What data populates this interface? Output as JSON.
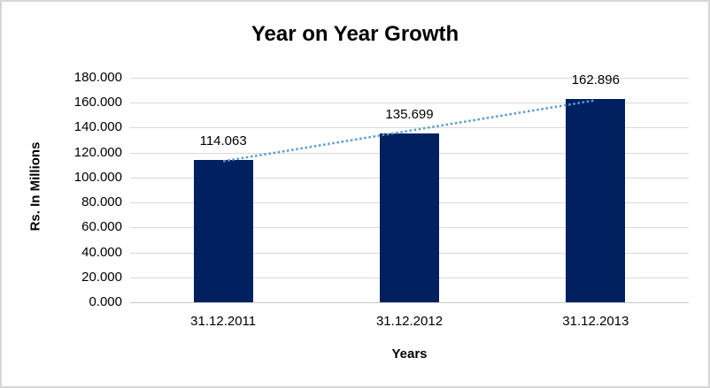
{
  "window": {
    "background": "#FFFFFF",
    "frame_border_color": "#D6D6D6"
  },
  "chart_data": {
    "type": "bar",
    "title": "Year on Year Growth",
    "xlabel": "Years",
    "ylabel": "Rs. In Millions",
    "categories": [
      "31.12.2011",
      "31.12.2012",
      "31.12.2013"
    ],
    "values": [
      114.063,
      135.699,
      162.896
    ],
    "data_labels": [
      "114.063",
      "135.699",
      "162.896"
    ],
    "ylim": [
      0,
      180
    ],
    "ytick_step": 20,
    "ytick_labels": [
      "0.000",
      "20.000",
      "40.000",
      "60.000",
      "80.000",
      "100.000",
      "120.000",
      "140.000",
      "160.000",
      "180.000"
    ],
    "grid": true,
    "legend": "none",
    "trendline": {
      "type": "linear",
      "style": "dotted",
      "color": "#5B9BD5",
      "span": "first-to-last-category"
    },
    "colors": {
      "bar": "#002060",
      "gridline": "#D9D9D9",
      "axis_line": "#C9C9C9",
      "text": "#000000"
    }
  }
}
